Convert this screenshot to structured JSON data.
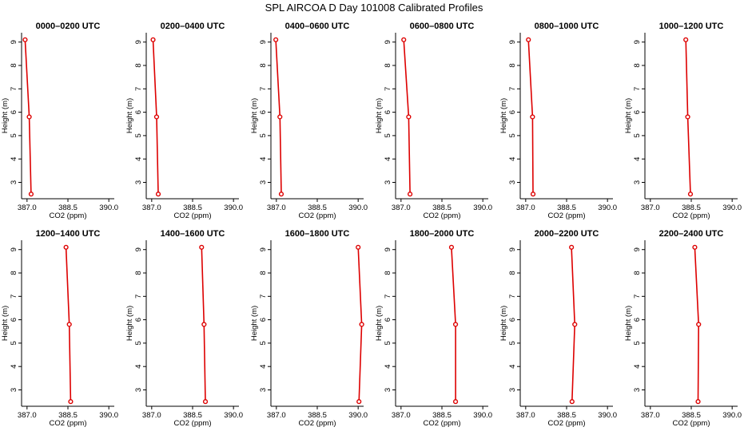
{
  "figure": {
    "title": "SPL AIRCOA D  Day 101008  Calibrated Profiles"
  },
  "chart_data": [
    {
      "type": "line",
      "title": "0000–0200 UTC",
      "xlabel": "CO2 (ppm)",
      "ylabel": "Height (m)",
      "xlim": [
        386.8,
        390.2
      ],
      "ylim": [
        2.3,
        9.4
      ],
      "x_ticks": [
        "387.0",
        "388.5",
        "390.0"
      ],
      "y_ticks": [
        "3",
        "4",
        "5",
        "6",
        "7",
        "8",
        "9"
      ],
      "series": [
        {
          "color": "#dd0000",
          "points": [
            {
              "x": 386.93,
              "y": 9.1
            },
            {
              "x": 387.08,
              "y": 5.8
            },
            {
              "x": 387.15,
              "y": 2.5
            }
          ]
        }
      ]
    },
    {
      "type": "line",
      "title": "0200–0400 UTC",
      "xlabel": "CO2 (ppm)",
      "ylabel": "Height (m)",
      "xlim": [
        386.8,
        390.2
      ],
      "ylim": [
        2.3,
        9.4
      ],
      "x_ticks": [
        "387.0",
        "388.5",
        "390.0"
      ],
      "y_ticks": [
        "3",
        "4",
        "5",
        "6",
        "7",
        "8",
        "9"
      ],
      "series": [
        {
          "color": "#dd0000",
          "points": [
            {
              "x": 387.05,
              "y": 9.1
            },
            {
              "x": 387.18,
              "y": 5.8
            },
            {
              "x": 387.24,
              "y": 2.5
            }
          ]
        }
      ]
    },
    {
      "type": "line",
      "title": "0400–0600 UTC",
      "xlabel": "CO2 (ppm)",
      "ylabel": "Height (m)",
      "xlim": [
        386.8,
        390.2
      ],
      "ylim": [
        2.3,
        9.4
      ],
      "x_ticks": [
        "387.0",
        "388.5",
        "390.0"
      ],
      "y_ticks": [
        "3",
        "4",
        "5",
        "6",
        "7",
        "8",
        "9"
      ],
      "series": [
        {
          "color": "#dd0000",
          "points": [
            {
              "x": 386.98,
              "y": 9.1
            },
            {
              "x": 387.13,
              "y": 5.8
            },
            {
              "x": 387.18,
              "y": 2.5
            }
          ]
        }
      ]
    },
    {
      "type": "line",
      "title": "0600–0800 UTC",
      "xlabel": "CO2 (ppm)",
      "ylabel": "Height (m)",
      "xlim": [
        386.8,
        390.2
      ],
      "ylim": [
        2.3,
        9.4
      ],
      "x_ticks": [
        "387.0",
        "388.5",
        "390.0"
      ],
      "y_ticks": [
        "3",
        "4",
        "5",
        "6",
        "7",
        "8",
        "9"
      ],
      "series": [
        {
          "color": "#dd0000",
          "points": [
            {
              "x": 387.1,
              "y": 9.1
            },
            {
              "x": 387.28,
              "y": 5.8
            },
            {
              "x": 387.33,
              "y": 2.5
            }
          ]
        }
      ]
    },
    {
      "type": "line",
      "title": "0800–1000 UTC",
      "xlabel": "CO2 (ppm)",
      "ylabel": "Height (m)",
      "xlim": [
        386.8,
        390.2
      ],
      "ylim": [
        2.3,
        9.4
      ],
      "x_ticks": [
        "387.0",
        "388.5",
        "390.0"
      ],
      "y_ticks": [
        "3",
        "4",
        "5",
        "6",
        "7",
        "8",
        "9"
      ],
      "series": [
        {
          "color": "#dd0000",
          "points": [
            {
              "x": 387.1,
              "y": 9.1
            },
            {
              "x": 387.25,
              "y": 5.8
            },
            {
              "x": 387.27,
              "y": 2.5
            }
          ]
        }
      ]
    },
    {
      "type": "line",
      "title": "1000–1200 UTC",
      "xlabel": "CO2 (ppm)",
      "ylabel": "Height (m)",
      "xlim": [
        386.8,
        390.2
      ],
      "ylim": [
        2.3,
        9.4
      ],
      "x_ticks": [
        "387.0",
        "388.5",
        "390.0"
      ],
      "y_ticks": [
        "3",
        "4",
        "5",
        "6",
        "7",
        "8",
        "9"
      ],
      "series": [
        {
          "color": "#dd0000",
          "points": [
            {
              "x": 388.3,
              "y": 9.1
            },
            {
              "x": 388.37,
              "y": 5.8
            },
            {
              "x": 388.47,
              "y": 2.5
            }
          ]
        }
      ]
    },
    {
      "type": "line",
      "title": "1200–1400 UTC",
      "xlabel": "CO2 (ppm)",
      "ylabel": "Height (m)",
      "xlim": [
        386.8,
        390.2
      ],
      "ylim": [
        2.3,
        9.4
      ],
      "x_ticks": [
        "387.0",
        "388.5",
        "390.0"
      ],
      "y_ticks": [
        "3",
        "4",
        "5",
        "6",
        "7",
        "8",
        "9"
      ],
      "series": [
        {
          "color": "#dd0000",
          "points": [
            {
              "x": 388.43,
              "y": 9.1
            },
            {
              "x": 388.55,
              "y": 5.8
            },
            {
              "x": 388.6,
              "y": 2.5
            }
          ]
        }
      ]
    },
    {
      "type": "line",
      "title": "1400–1600 UTC",
      "xlabel": "CO2 (ppm)",
      "ylabel": "Height (m)",
      "xlim": [
        386.8,
        390.2
      ],
      "ylim": [
        2.3,
        9.4
      ],
      "x_ticks": [
        "387.0",
        "388.5",
        "390.0"
      ],
      "y_ticks": [
        "3",
        "4",
        "5",
        "6",
        "7",
        "8",
        "9"
      ],
      "series": [
        {
          "color": "#dd0000",
          "points": [
            {
              "x": 388.83,
              "y": 9.1
            },
            {
              "x": 388.92,
              "y": 5.8
            },
            {
              "x": 388.97,
              "y": 2.5
            }
          ]
        }
      ]
    },
    {
      "type": "line",
      "title": "1600–1800 UTC",
      "xlabel": "CO2 (ppm)",
      "ylabel": "Height (m)",
      "xlim": [
        386.8,
        390.2
      ],
      "ylim": [
        2.3,
        9.4
      ],
      "x_ticks": [
        "387.0",
        "388.5",
        "390.0"
      ],
      "y_ticks": [
        "3",
        "4",
        "5",
        "6",
        "7",
        "8",
        "9"
      ],
      "series": [
        {
          "color": "#dd0000",
          "points": [
            {
              "x": 390.0,
              "y": 9.1
            },
            {
              "x": 390.13,
              "y": 5.8
            },
            {
              "x": 390.03,
              "y": 2.5
            }
          ]
        }
      ]
    },
    {
      "type": "line",
      "title": "1800–2000 UTC",
      "xlabel": "CO2 (ppm)",
      "ylabel": "Height (m)",
      "xlim": [
        386.8,
        390.2
      ],
      "ylim": [
        2.3,
        9.4
      ],
      "x_ticks": [
        "387.0",
        "388.5",
        "390.0"
      ],
      "y_ticks": [
        "3",
        "4",
        "5",
        "6",
        "7",
        "8",
        "9"
      ],
      "series": [
        {
          "color": "#dd0000",
          "points": [
            {
              "x": 388.85,
              "y": 9.1
            },
            {
              "x": 389.0,
              "y": 5.8
            },
            {
              "x": 389.0,
              "y": 2.5
            }
          ]
        }
      ]
    },
    {
      "type": "line",
      "title": "2000–2200 UTC",
      "xlabel": "CO2 (ppm)",
      "ylabel": "Height (m)",
      "xlim": [
        386.8,
        390.2
      ],
      "ylim": [
        2.3,
        9.4
      ],
      "x_ticks": [
        "387.0",
        "388.5",
        "390.0"
      ],
      "y_ticks": [
        "3",
        "4",
        "5",
        "6",
        "7",
        "8",
        "9"
      ],
      "series": [
        {
          "color": "#dd0000",
          "points": [
            {
              "x": 388.68,
              "y": 9.1
            },
            {
              "x": 388.8,
              "y": 5.8
            },
            {
              "x": 388.7,
              "y": 2.5
            }
          ]
        }
      ]
    },
    {
      "type": "line",
      "title": "2200–2400 UTC",
      "xlabel": "CO2 (ppm)",
      "ylabel": "Height (m)",
      "xlim": [
        386.8,
        390.2
      ],
      "ylim": [
        2.3,
        9.4
      ],
      "x_ticks": [
        "387.0",
        "388.5",
        "390.0"
      ],
      "y_ticks": [
        "3",
        "4",
        "5",
        "6",
        "7",
        "8",
        "9"
      ],
      "series": [
        {
          "color": "#dd0000",
          "points": [
            {
              "x": 388.63,
              "y": 9.1
            },
            {
              "x": 388.77,
              "y": 5.8
            },
            {
              "x": 388.75,
              "y": 2.5
            }
          ]
        }
      ]
    }
  ]
}
